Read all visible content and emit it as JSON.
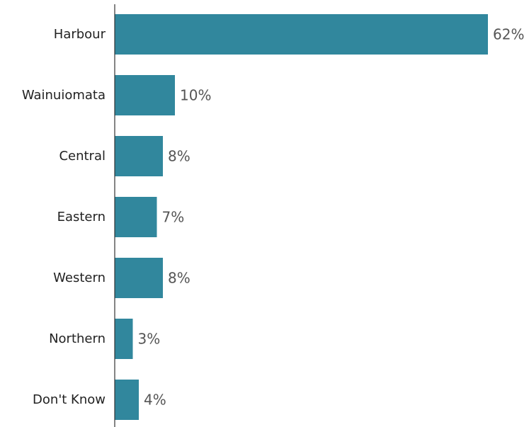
{
  "chart_data": {
    "type": "bar",
    "orientation": "horizontal",
    "categories": [
      "Harbour",
      "Wainuiomata",
      "Central",
      "Eastern",
      "Western",
      "Northern",
      "Don't Know"
    ],
    "values": [
      62,
      10,
      8,
      7,
      8,
      3,
      4
    ],
    "value_labels": [
      "62%",
      "10%",
      "8%",
      "7%",
      "8%",
      "3%",
      "4%"
    ],
    "value_unit": "%",
    "xlim": [
      0,
      62
    ],
    "grid": false,
    "legend": false,
    "bar_color": "#31879d",
    "axis_color": "#333333"
  }
}
